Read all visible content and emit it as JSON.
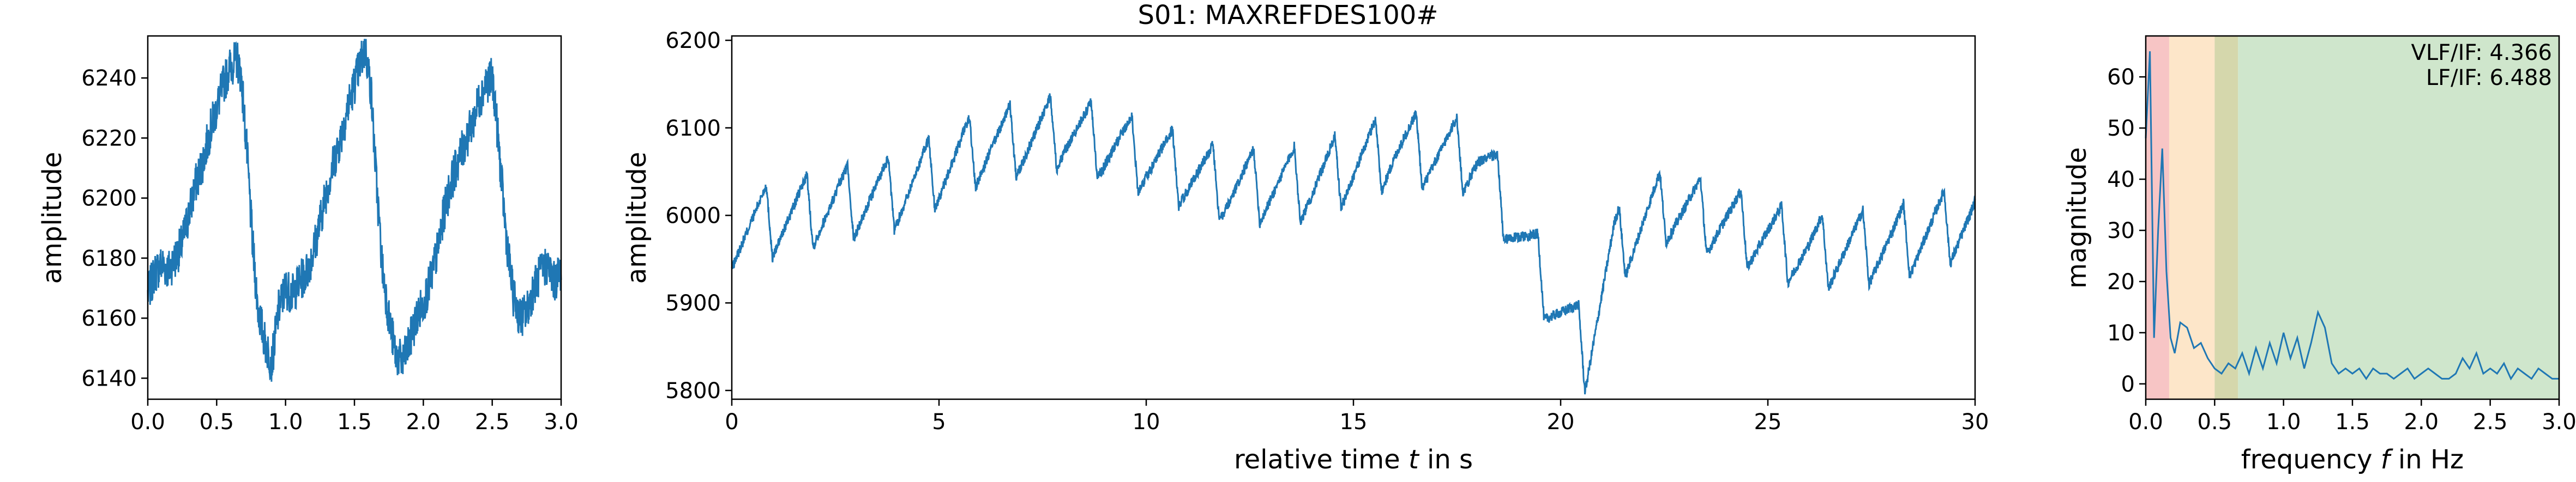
{
  "title": "S01: MAXREFDES100#",
  "line_color": "#1f77b4",
  "chart_data": [
    {
      "type": "line",
      "xlabel": "",
      "ylabel": "amplitude",
      "xlim": [
        0,
        3.0
      ],
      "ylim": [
        6133,
        6254
      ],
      "xticks": [
        "0.0",
        "0.5",
        "1.0",
        "1.5",
        "2.0",
        "2.5",
        "3.0"
      ],
      "yticks": [
        6140,
        6160,
        6180,
        6200,
        6220,
        6240
      ],
      "x": [
        0.0,
        0.05,
        0.1,
        0.15,
        0.2,
        0.25,
        0.3,
        0.35,
        0.4,
        0.45,
        0.5,
        0.55,
        0.6,
        0.65,
        0.68,
        0.72,
        0.76,
        0.8,
        0.85,
        0.9,
        0.95,
        1.0,
        1.05,
        1.1,
        1.15,
        1.2,
        1.25,
        1.3,
        1.35,
        1.4,
        1.45,
        1.5,
        1.55,
        1.58,
        1.62,
        1.66,
        1.7,
        1.75,
        1.8,
        1.85,
        1.9,
        1.95,
        2.0,
        2.05,
        2.1,
        2.15,
        2.2,
        2.25,
        2.3,
        2.35,
        2.4,
        2.45,
        2.5,
        2.52,
        2.56,
        2.6,
        2.65,
        2.7,
        2.75,
        2.8,
        2.85,
        2.9,
        2.95,
        3.0
      ],
      "series": [
        {
          "values": [
            6168,
            6175,
            6178,
            6176,
            6180,
            6185,
            6195,
            6205,
            6212,
            6222,
            6230,
            6238,
            6244,
            6246,
            6240,
            6215,
            6185,
            6163,
            6152,
            6145,
            6163,
            6170,
            6168,
            6172,
            6175,
            6182,
            6192,
            6203,
            6212,
            6220,
            6230,
            6238,
            6246,
            6250,
            6236,
            6205,
            6178,
            6160,
            6148,
            6145,
            6152,
            6160,
            6165,
            6172,
            6182,
            6195,
            6205,
            6212,
            6218,
            6224,
            6232,
            6238,
            6240,
            6232,
            6210,
            6188,
            6168,
            6160,
            6162,
            6170,
            6175,
            6178,
            6172,
            6176
          ]
        }
      ]
    },
    {
      "type": "line",
      "xlabel": "relative time t in s",
      "ylabel": "amplitude",
      "xlim": [
        0,
        30
      ],
      "ylim": [
        5790,
        6205
      ],
      "xticks": [
        "0",
        "5",
        "10",
        "15",
        "20",
        "25",
        "30"
      ],
      "yticks": [
        5800,
        5900,
        6000,
        6100,
        6200
      ],
      "beat_period_s": 0.98,
      "baseline": {
        "t": [
          0,
          2,
          4,
          6,
          8,
          10,
          12,
          14,
          16,
          18,
          18.6,
          19.5,
          20.6,
          21.3,
          22.5,
          24,
          26,
          28,
          30
        ],
        "v": [
          5975,
          6000,
          6020,
          6070,
          6090,
          6060,
          6025,
          6030,
          6070,
          6060,
          6010,
          5925,
          5835,
          5955,
          6005,
          5985,
          5950,
          5960,
          5990
        ]
      },
      "series": [
        {
          "values": []
        }
      ]
    },
    {
      "type": "line",
      "xlabel": "frequency f in Hz",
      "ylabel": "magnitude",
      "xlim": [
        0,
        3.0
      ],
      "ylim": [
        -3,
        68
      ],
      "xticks": [
        "0.0",
        "0.5",
        "1.0",
        "1.5",
        "2.0",
        "2.5",
        "3.0"
      ],
      "yticks": [
        0,
        10,
        20,
        30,
        40,
        50,
        60
      ],
      "bands": [
        {
          "from": 0.0,
          "to": 0.17,
          "color": "#f7c5c5"
        },
        {
          "from": 0.17,
          "to": 0.5,
          "color": "#fde6c9"
        },
        {
          "from": 0.5,
          "to": 0.67,
          "color": "#d5d7ac"
        },
        {
          "from": 0.67,
          "to": 3.0,
          "color": "#cfe6cc"
        }
      ],
      "annotations": [
        "VLF/IF: 4.366",
        "LF/IF: 6.488"
      ],
      "x": [
        0.0,
        0.03,
        0.06,
        0.09,
        0.12,
        0.15,
        0.18,
        0.21,
        0.25,
        0.3,
        0.35,
        0.4,
        0.45,
        0.5,
        0.55,
        0.6,
        0.65,
        0.7,
        0.75,
        0.8,
        0.85,
        0.9,
        0.95,
        1.0,
        1.05,
        1.1,
        1.15,
        1.2,
        1.25,
        1.3,
        1.35,
        1.4,
        1.45,
        1.5,
        1.55,
        1.6,
        1.65,
        1.7,
        1.75,
        1.8,
        1.85,
        1.9,
        1.95,
        2.0,
        2.05,
        2.1,
        2.15,
        2.2,
        2.25,
        2.3,
        2.35,
        2.4,
        2.45,
        2.5,
        2.55,
        2.6,
        2.65,
        2.7,
        2.75,
        2.8,
        2.85,
        2.9,
        2.95,
        3.0
      ],
      "series": [
        {
          "values": [
            48,
            65,
            9,
            30,
            46,
            22,
            9,
            6,
            12,
            11,
            7,
            8,
            5,
            3,
            2,
            4,
            3,
            6,
            2,
            7,
            3,
            8,
            4,
            10,
            5,
            9,
            3,
            8,
            14,
            11,
            4,
            2,
            3,
            2,
            3,
            1,
            3,
            2,
            2,
            1,
            2,
            3,
            1,
            2,
            3,
            2,
            1,
            1,
            2,
            5,
            3,
            6,
            2,
            3,
            2,
            4,
            1,
            3,
            2,
            1,
            3,
            2,
            1,
            1
          ]
        }
      ]
    }
  ]
}
